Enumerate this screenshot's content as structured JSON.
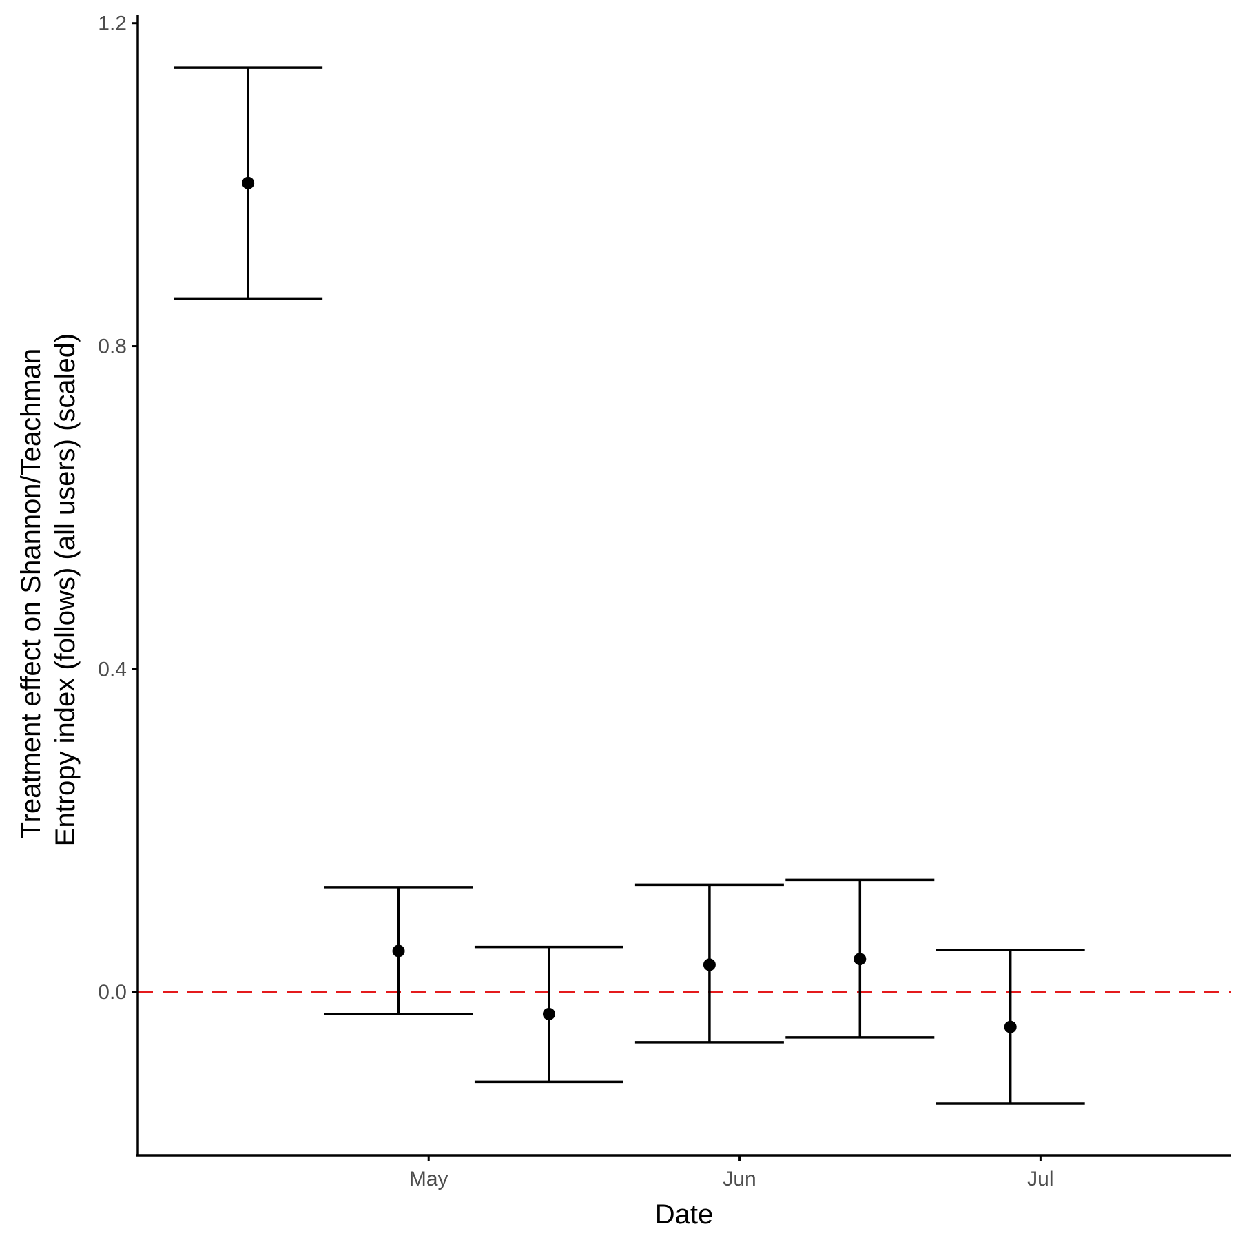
{
  "chart_data": {
    "type": "scatter",
    "subtype": "point-with-errorbars",
    "title": "",
    "xlabel": "Date",
    "ylabel_lines": [
      "Treatment effect on Shannon/Teachman",
      "Entropy index (follows) (all users) (scaled)"
    ],
    "x_axis_type": "date",
    "xlim": [
      "2021-04-02",
      "2021-07-20"
    ],
    "ylim": [
      -0.202,
      1.21
    ],
    "x_ticks": [
      {
        "value": "2021-05-01",
        "label": "May"
      },
      {
        "value": "2021-06-01",
        "label": "Jun"
      },
      {
        "value": "2021-07-01",
        "label": "Jul"
      }
    ],
    "y_ticks": [
      {
        "value": 0.0,
        "label": "0.0"
      },
      {
        "value": 0.4,
        "label": "0.4"
      },
      {
        "value": 0.8,
        "label": "0.8"
      },
      {
        "value": 1.2,
        "label": "1.2"
      }
    ],
    "reference_line": {
      "y": 0.0,
      "color": "#e41a1c",
      "style": "dashed"
    },
    "points": [
      {
        "x": "2021-04-13",
        "y": 1.002,
        "ymin": 0.859,
        "ymax": 1.145
      },
      {
        "x": "2021-04-28",
        "y": 0.051,
        "ymin": -0.027,
        "ymax": 0.13
      },
      {
        "x": "2021-05-13",
        "y": -0.027,
        "ymin": -0.111,
        "ymax": 0.056
      },
      {
        "x": "2021-05-29",
        "y": 0.034,
        "ymin": -0.062,
        "ymax": 0.133
      },
      {
        "x": "2021-06-13",
        "y": 0.041,
        "ymin": -0.056,
        "ymax": 0.139
      },
      {
        "x": "2021-06-28",
        "y": -0.043,
        "ymin": -0.138,
        "ymax": 0.052
      }
    ],
    "grid": false,
    "legend": "none",
    "colors": {
      "points": "#000000",
      "reference_line": "#e41a1c",
      "axis": "#000000",
      "tick_labels": "#4d4d4d"
    }
  }
}
